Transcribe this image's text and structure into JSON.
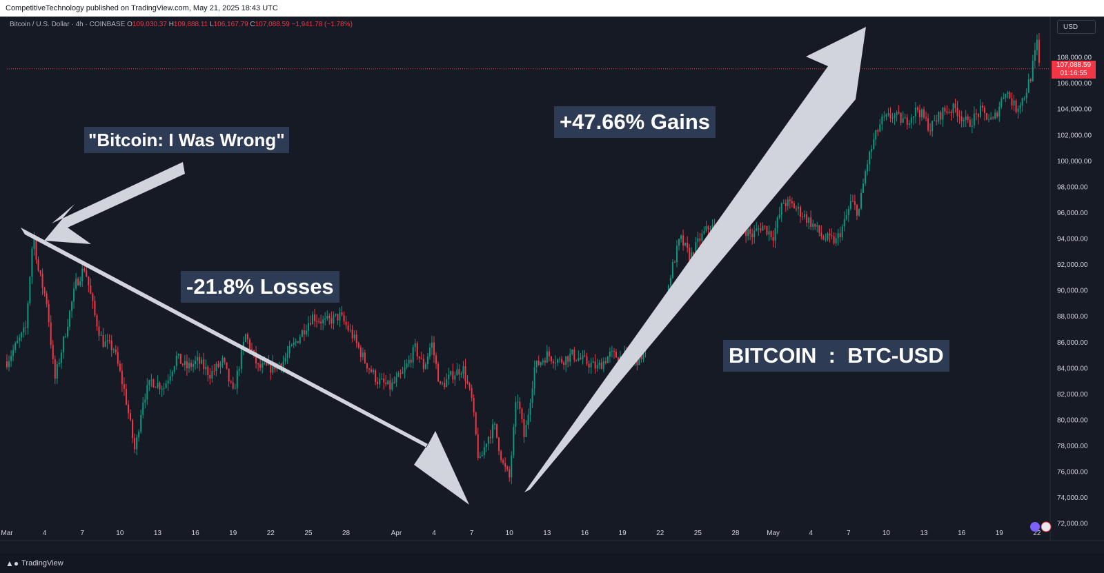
{
  "header": {
    "publish_line": "CompetitiveTechnology published on TradingView.com, May 21, 2025 18:43 UTC"
  },
  "legend": {
    "symbol": "Bitcoin / U.S. Dollar · 4h · COINBASE",
    "o_label": "O",
    "o_value": "109,030.37",
    "h_label": "H",
    "h_value": "109,888.11",
    "l_label": "L",
    "l_value": "106,167.79",
    "c_label": "C",
    "c_value": "107,088.59",
    "change": "−1,941.78 (−1.78%)"
  },
  "currency_button": "USD",
  "last_price": {
    "value": "107,088.59",
    "countdown": "01:16:55"
  },
  "footer": {
    "brand": "TradingView"
  },
  "annotations": {
    "quote": "\"Bitcoin: I Was Wrong\"",
    "losses": "-21.8% Losses",
    "gains": "+47.66% Gains",
    "ticker": "BITCOIN  :  BTC-USD"
  },
  "colors": {
    "background": "#161a25",
    "up": "#089981",
    "down": "#f23645",
    "arrow": "#d1d4dc",
    "annotation_box": "#2e3b55",
    "axis_text": "#d1d4dc"
  },
  "chart_data": {
    "type": "candlestick",
    "title": "Bitcoin / U.S. Dollar · 4h · COINBASE",
    "y_ticks": [
      72000,
      74000,
      76000,
      78000,
      80000,
      82000,
      84000,
      86000,
      88000,
      90000,
      92000,
      94000,
      96000,
      98000,
      100000,
      102000,
      104000,
      106000,
      108000
    ],
    "y_tick_labels": [
      "72,000.00",
      "74,000.00",
      "76,000.00",
      "78,000.00",
      "80,000.00",
      "82,000.00",
      "84,000.00",
      "86,000.00",
      "88,000.00",
      "90,000.00",
      "92,000.00",
      "94,000.00",
      "96,000.00",
      "98,000.00",
      "100,000.00",
      "102,000.00",
      "104,000.00",
      "106,000.00",
      "108,000.00"
    ],
    "ylim": [
      71400,
      110800
    ],
    "x_range_days": [
      0,
      82.5
    ],
    "x_ticks": [
      {
        "day": 0,
        "label": "Mar"
      },
      {
        "day": 3,
        "label": "4"
      },
      {
        "day": 6,
        "label": "7"
      },
      {
        "day": 9,
        "label": "10"
      },
      {
        "day": 12,
        "label": "13"
      },
      {
        "day": 15,
        "label": "16"
      },
      {
        "day": 18,
        "label": "19"
      },
      {
        "day": 21,
        "label": "22"
      },
      {
        "day": 24,
        "label": "25"
      },
      {
        "day": 27,
        "label": "28"
      },
      {
        "day": 31,
        "label": "Apr"
      },
      {
        "day": 34,
        "label": "4"
      },
      {
        "day": 37,
        "label": "7"
      },
      {
        "day": 40,
        "label": "10"
      },
      {
        "day": 43,
        "label": "13"
      },
      {
        "day": 46,
        "label": "16"
      },
      {
        "day": 49,
        "label": "19"
      },
      {
        "day": 52,
        "label": "22"
      },
      {
        "day": 55,
        "label": "25"
      },
      {
        "day": 58,
        "label": "28"
      },
      {
        "day": 61,
        "label": "May"
      },
      {
        "day": 64,
        "label": "4"
      },
      {
        "day": 67,
        "label": "7"
      },
      {
        "day": 70,
        "label": "10"
      },
      {
        "day": 73,
        "label": "13"
      },
      {
        "day": 76,
        "label": "16"
      },
      {
        "day": 79,
        "label": "19"
      },
      {
        "day": 82,
        "label": "22"
      }
    ],
    "candles_per_day": 6,
    "key_closes": [
      [
        0,
        84500
      ],
      [
        1.5,
        87000
      ],
      [
        2.1,
        94500
      ],
      [
        2.5,
        91500
      ],
      [
        3.2,
        89000
      ],
      [
        3.8,
        83000
      ],
      [
        4.6,
        86500
      ],
      [
        5.5,
        90500
      ],
      [
        6.2,
        91800
      ],
      [
        7.0,
        88000
      ],
      [
        7.6,
        86000
      ],
      [
        8.5,
        85500
      ],
      [
        9.4,
        82000
      ],
      [
        10.2,
        77500
      ],
      [
        10.8,
        81500
      ],
      [
        11.5,
        83000
      ],
      [
        12.5,
        82500
      ],
      [
        13.5,
        84800
      ],
      [
        14.3,
        84000
      ],
      [
        15.2,
        84500
      ],
      [
        16.2,
        83500
      ],
      [
        17.2,
        84500
      ],
      [
        18.0,
        82000
      ],
      [
        19.0,
        86500
      ],
      [
        20.0,
        84000
      ],
      [
        21.0,
        84000
      ],
      [
        22.0,
        84500
      ],
      [
        23.0,
        86000
      ],
      [
        24.3,
        88000
      ],
      [
        25.3,
        87500
      ],
      [
        26.5,
        88000
      ],
      [
        27.5,
        86500
      ],
      [
        28.5,
        84500
      ],
      [
        29.5,
        83000
      ],
      [
        30.5,
        82500
      ],
      [
        31.5,
        83500
      ],
      [
        32.5,
        85500
      ],
      [
        33.2,
        84000
      ],
      [
        33.8,
        86000
      ],
      [
        34.5,
        82500
      ],
      [
        35.5,
        83500
      ],
      [
        36.3,
        84000
      ],
      [
        37.0,
        81500
      ],
      [
        37.6,
        76500
      ],
      [
        38.2,
        78500
      ],
      [
        38.8,
        79500
      ],
      [
        39.5,
        76500
      ],
      [
        40.0,
        75500
      ],
      [
        40.6,
        82000
      ],
      [
        41.2,
        78500
      ],
      [
        42.0,
        84000
      ],
      [
        43.0,
        85000
      ],
      [
        44.0,
        84500
      ],
      [
        45.0,
        85000
      ],
      [
        46.0,
        84500
      ],
      [
        47.0,
        84000
      ],
      [
        48.0,
        85000
      ],
      [
        49.0,
        84800
      ],
      [
        50.0,
        84500
      ],
      [
        50.6,
        85000
      ],
      [
        51.5,
        87000
      ],
      [
        52.3,
        88500
      ],
      [
        52.9,
        91500
      ],
      [
        53.6,
        94000
      ],
      [
        54.4,
        92500
      ],
      [
        55.2,
        94000
      ],
      [
        56.0,
        95000
      ],
      [
        56.8,
        94200
      ],
      [
        57.6,
        94500
      ],
      [
        58.4,
        95000
      ],
      [
        59.3,
        94200
      ],
      [
        60.1,
        95000
      ],
      [
        61.0,
        94200
      ],
      [
        61.8,
        96800
      ],
      [
        62.6,
        96500
      ],
      [
        63.4,
        95800
      ],
      [
        64.2,
        95000
      ],
      [
        65.0,
        94000
      ],
      [
        66.0,
        93800
      ],
      [
        66.6,
        95000
      ],
      [
        67.2,
        96800
      ],
      [
        67.8,
        96000
      ],
      [
        68.4,
        99500
      ],
      [
        69.0,
        101500
      ],
      [
        69.6,
        103000
      ],
      [
        70.5,
        103500
      ],
      [
        71.5,
        103000
      ],
      [
        72.5,
        104000
      ],
      [
        73.5,
        102500
      ],
      [
        74.5,
        103800
      ],
      [
        75.5,
        104000
      ],
      [
        76.5,
        102800
      ],
      [
        77.5,
        103800
      ],
      [
        78.5,
        103000
      ],
      [
        79.5,
        105500
      ],
      [
        80.3,
        104000
      ],
      [
        81.0,
        105000
      ],
      [
        81.5,
        106500
      ],
      [
        82.0,
        109030
      ],
      [
        82.2,
        107088.59
      ]
    ]
  }
}
